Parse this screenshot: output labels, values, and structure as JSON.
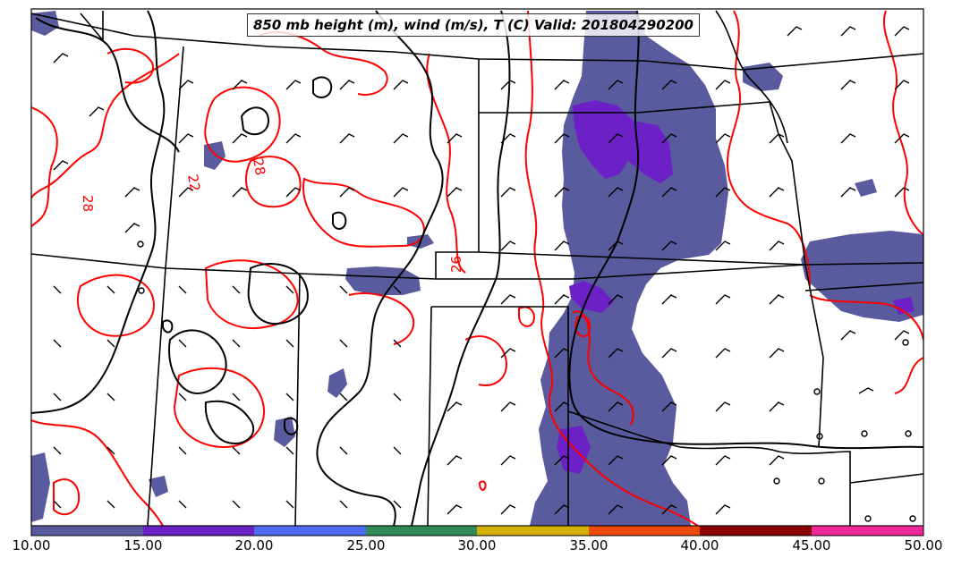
{
  "title": "850 mb height (m), wind (m/s), T (C) Valid: 201804290200",
  "contour_labels": [
    "28",
    "22",
    "28",
    "26"
  ],
  "colorbar": {
    "ticks": [
      "10.00",
      "15.00",
      "20.00",
      "25.00",
      "30.00",
      "35.00",
      "40.00",
      "45.00",
      "50.00"
    ],
    "colors": [
      "#5a5a9e",
      "#6b21c6",
      "#4f6bf5",
      "#2e8b57",
      "#d4b106",
      "#ee4a0b",
      "#8b0000",
      "#f0289a"
    ]
  },
  "styles": {
    "wind_shade_color": "#5a5a9e",
    "wind_strong_color": "#6b21c6",
    "temperature_contour_color": "#ff0000",
    "height_contour_color": "#000000",
    "border_color": "#000000"
  }
}
